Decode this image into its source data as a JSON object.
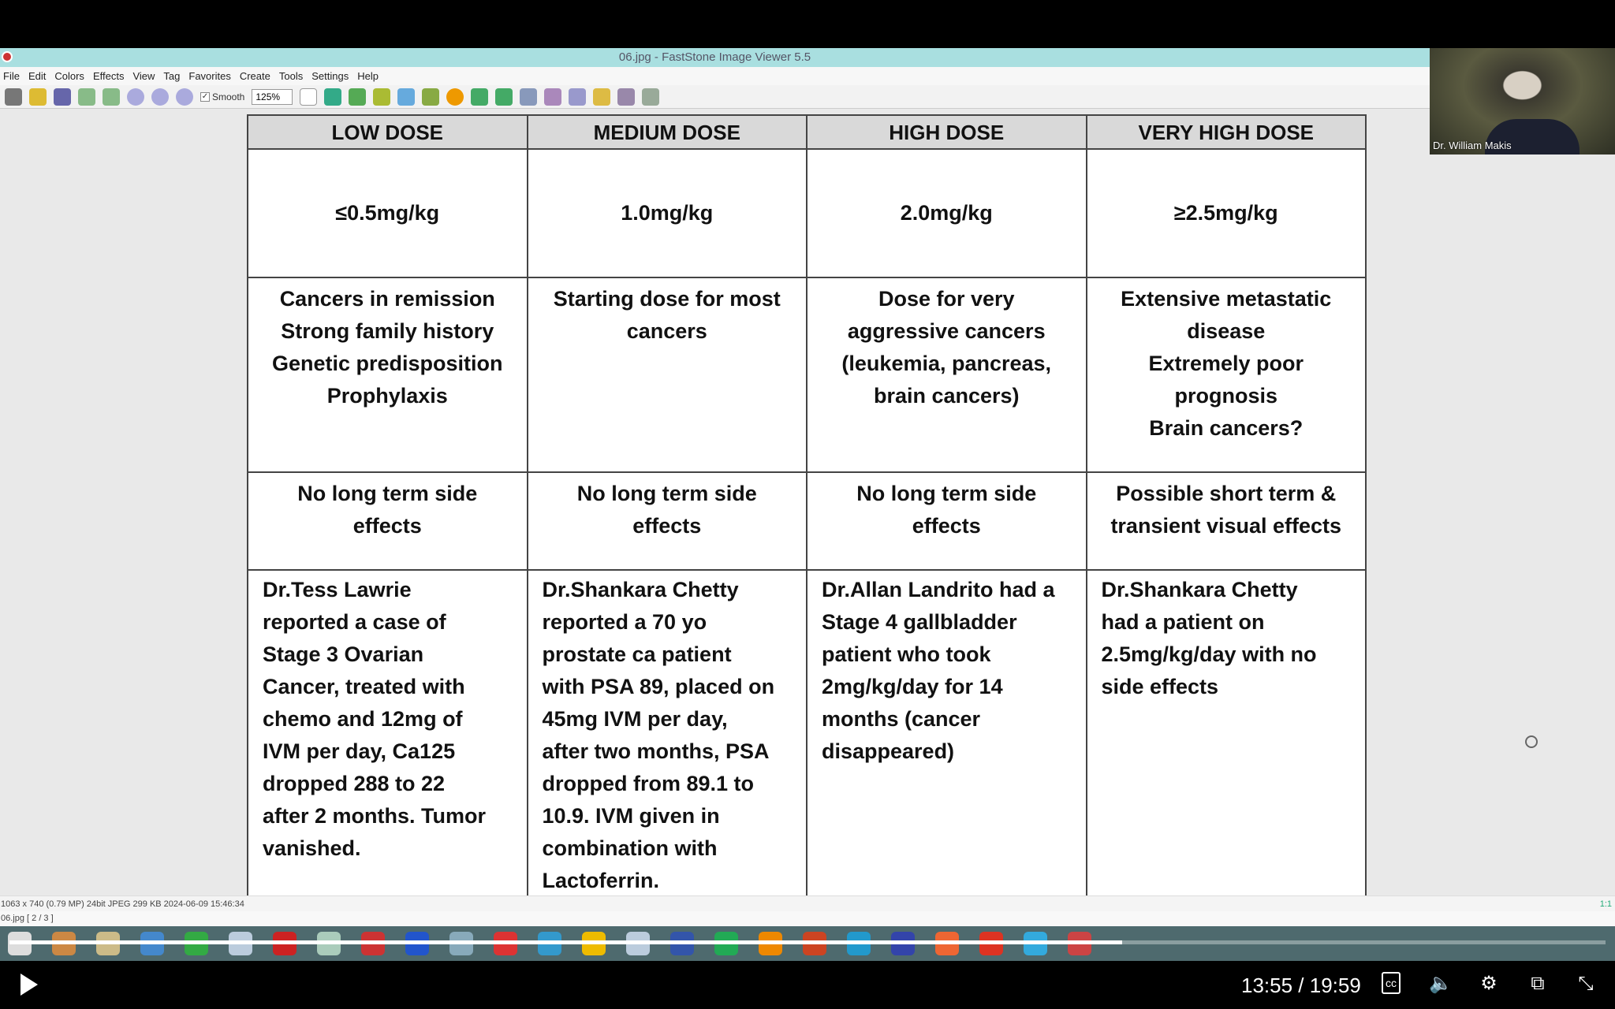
{
  "window": {
    "title": "06.jpg  -  FastStone Image Viewer 5.5"
  },
  "menu": [
    "File",
    "Edit",
    "Colors",
    "Effects",
    "View",
    "Tag",
    "Favorites",
    "Create",
    "Tools",
    "Settings",
    "Help"
  ],
  "toolbar": {
    "smooth_label": "Smooth",
    "smooth_checked": true,
    "zoom": "125%"
  },
  "webcam": {
    "name": "Dr. William Makis"
  },
  "table": {
    "headers": [
      "LOW DOSE",
      "MEDIUM DOSE",
      "HIGH DOSE",
      "VERY HIGH DOSE"
    ],
    "dose": [
      "≤0.5mg/kg",
      "1.0mg/kg",
      "2.0mg/kg",
      "≥2.5mg/kg"
    ],
    "indication": [
      "Cancers in remission\nStrong family history\nGenetic predisposition\nProphylaxis",
      "Starting dose for most\ncancers",
      "Dose for very\naggressive cancers\n(leukemia, pancreas,\nbrain cancers)",
      "Extensive metastatic\ndisease\nExtremely poor\nprognosis\nBrain cancers?"
    ],
    "side_effects": [
      "No long term side\neffects",
      "No long term side\neffects",
      "No long term side\neffects",
      "Possible short term &\ntransient visual effects"
    ],
    "cases": [
      "Dr.Tess Lawrie\nreported a case of\nStage 3 Ovarian\nCancer, treated with\nchemo and 12mg of\nIVM per day, Ca125\ndropped 288 to 22\nafter 2 months. Tumor\nvanished.",
      "Dr.Shankara Chetty\nreported a 70 yo\nprostate ca patient\nwith PSA 89, placed on\n45mg IVM per day,\nafter two months, PSA\ndropped from 89.1 to\n10.9. IVM given in\ncombination with\nLactoferrin.",
      "Dr.Allan Landrito had a\nStage 4 gallbladder\npatient who took\n2mg/kg/day for 14\nmonths (cancer\ndisappeared)",
      "Dr.Shankara Chetty\nhad a patient on\n2.5mg/kg/day with no\nside effects"
    ]
  },
  "status": {
    "info": "1063 x 740 (0.79 MP)  24bit  JPEG   299 KB   2024-06-09 15:46:34",
    "ratio": "1:1",
    "file": "06.jpg [ 2 / 3 ]"
  },
  "taskbar_colors": [
    "#ddd",
    "#c84",
    "#cb8",
    "#48c",
    "#3a4",
    "#bcd",
    "#c22",
    "#acb",
    "#c33",
    "#25c",
    "#8ab",
    "#d33",
    "#39c",
    "#eb0",
    "#bcd",
    "#35a",
    "#2a5",
    "#e80",
    "#c42",
    "#29c",
    "#34a",
    "#e63",
    "#d32",
    "#3ad",
    "#c44"
  ],
  "video": {
    "time": "13:55 / 19:59",
    "progress_percent": 69.7
  }
}
